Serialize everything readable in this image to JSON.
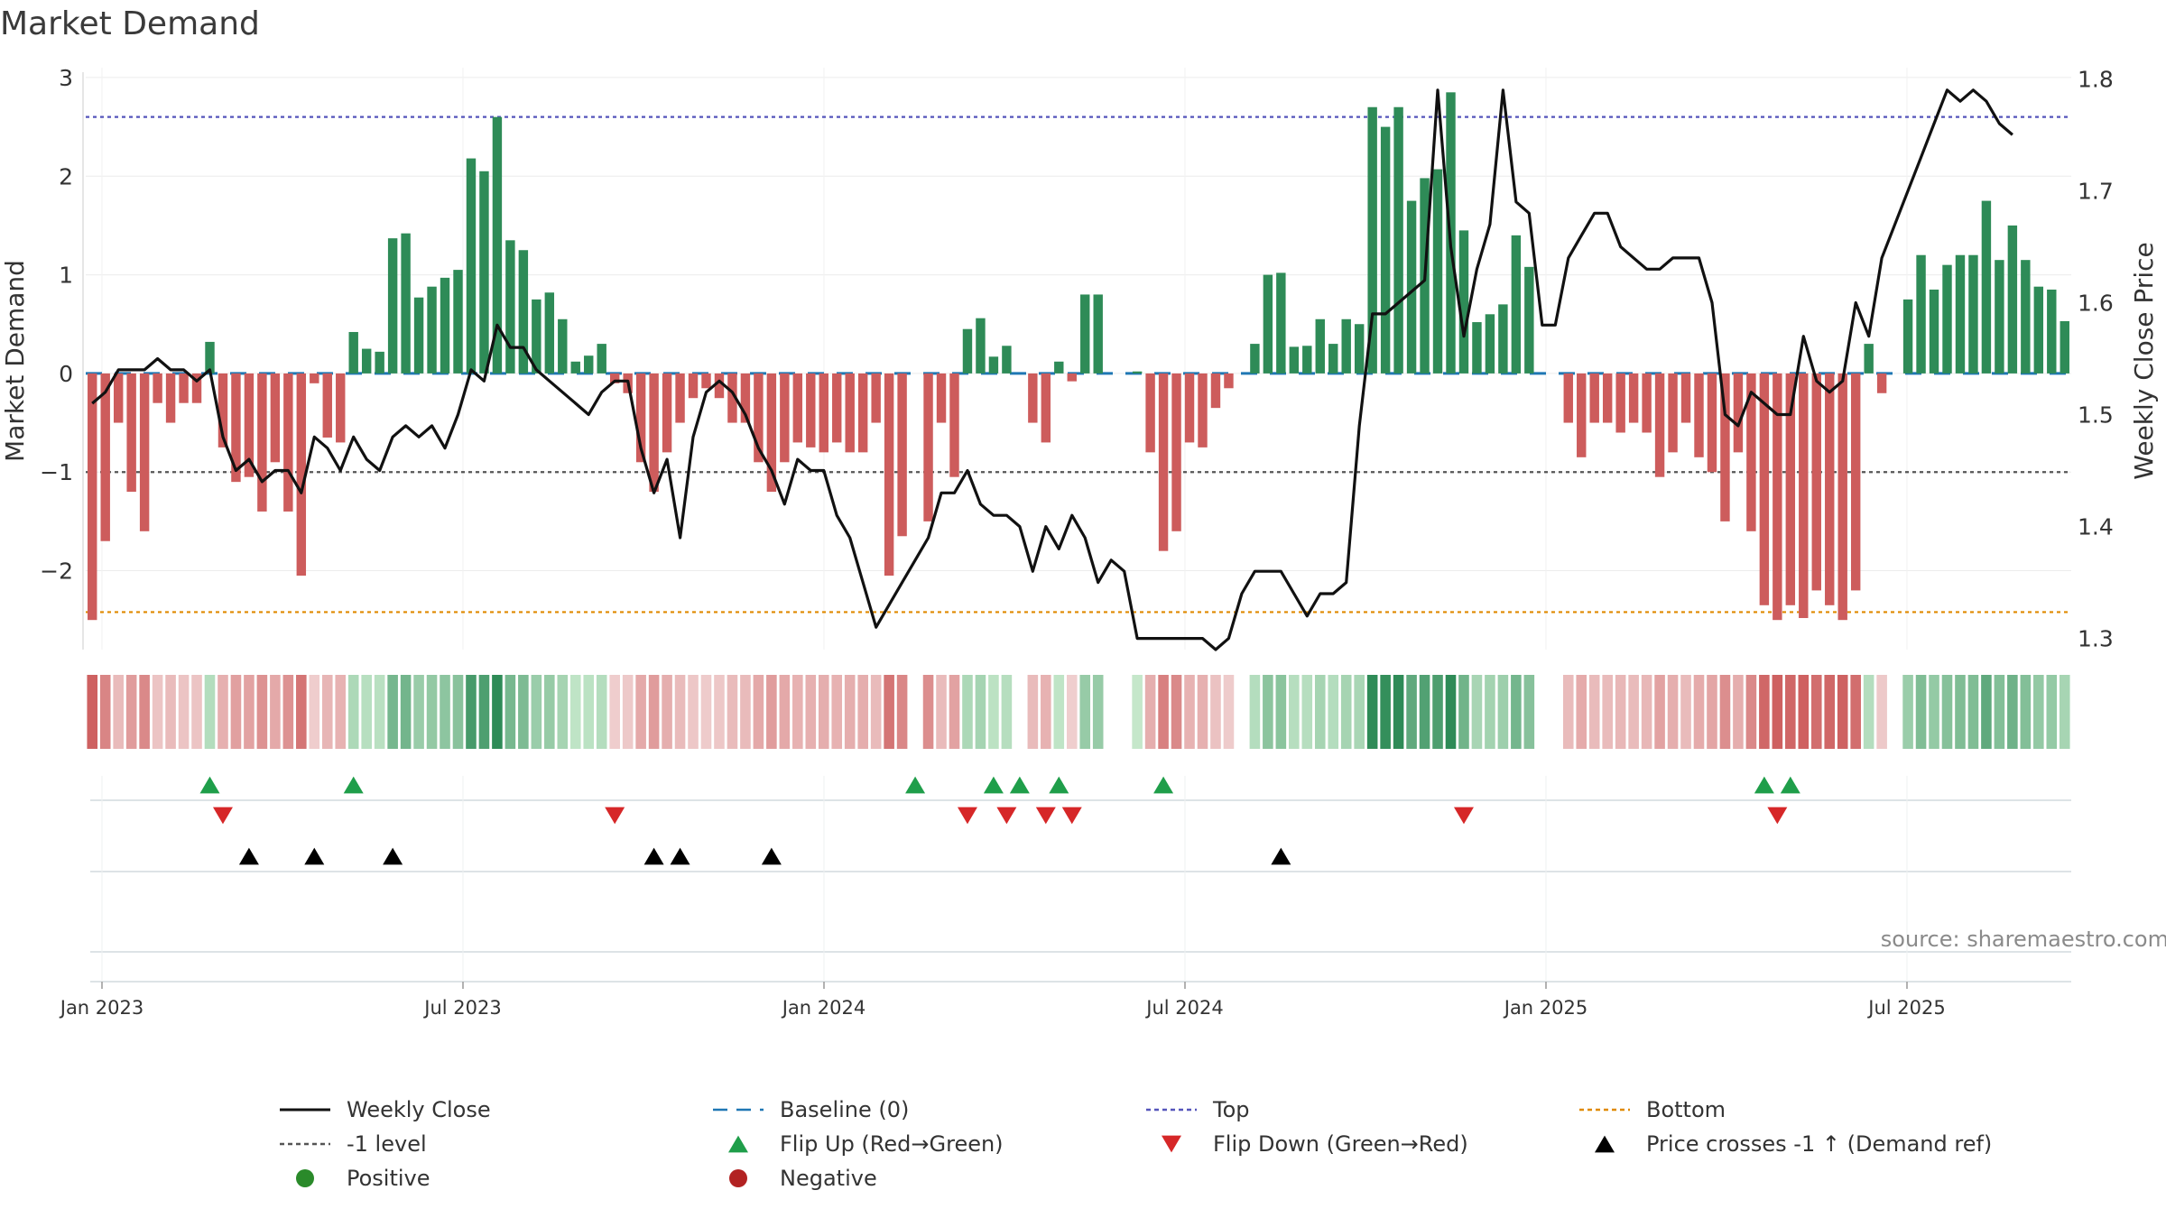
{
  "title": "Market Demand",
  "source": "source: sharemaestro.com",
  "colors": {
    "positive": "#2e8b57",
    "negative": "#cd5c5c",
    "close": "#111111",
    "top": "#5555bb",
    "bottom": "#e08a00",
    "minus1": "#555555",
    "baseline": "#1f77b4",
    "flip_up": "#1f9e4a",
    "flip_down": "#d62728",
    "cross": "#000000"
  },
  "chart_data": {
    "type": "bar",
    "ylabel": "Market Demand",
    "y2label": "Weekly Close Price",
    "ylim": [
      -2.8,
      3.1
    ],
    "y2lim": [
      1.29,
      1.81
    ],
    "yticks": [
      "3",
      "2",
      "1",
      "0",
      "−1",
      "−2"
    ],
    "y2ticks": [
      "1.8",
      "1.7",
      "1.6",
      "1.5",
      "1.4",
      "1.3"
    ],
    "xticks": [
      "Jan 2023",
      "Jul 2023",
      "Jan 2024",
      "Jul 2024",
      "Jan 2025",
      "Jul 2025"
    ],
    "reference_lines": {
      "top": 2.6,
      "bottom": -2.42,
      "minus_one": -1,
      "baseline": 0
    },
    "series": [
      {
        "name": "Market Demand",
        "type": "bar",
        "values": [
          -2.5,
          -1.7,
          -0.5,
          -1.2,
          -1.6,
          -0.3,
          -0.5,
          -0.3,
          -0.3,
          0.32,
          -0.75,
          -1.1,
          -1.05,
          -1.4,
          -0.9,
          -1.4,
          -2.05,
          -0.1,
          -0.65,
          -0.7,
          0.42,
          0.25,
          0.22,
          1.37,
          1.42,
          0.77,
          0.88,
          0.97,
          1.05,
          2.18,
          2.05,
          2.6,
          1.35,
          1.25,
          0.75,
          0.82,
          0.55,
          0.12,
          0.18,
          0.3,
          -0.1,
          -0.2,
          -0.9,
          -1.2,
          -0.8,
          -0.5,
          -0.25,
          -0.15,
          -0.25,
          -0.5,
          -0.5,
          -0.9,
          -1.2,
          -0.9,
          -0.7,
          -0.75,
          -0.8,
          -0.7,
          -0.8,
          -0.8,
          -0.5,
          -2.05,
          -1.65,
          0,
          -1.5,
          -0.5,
          -1.05,
          0.45,
          0.56,
          0.17,
          0.28,
          0,
          -0.5,
          -0.7,
          0.12,
          -0.08,
          0.8,
          0.8,
          0,
          0,
          0.02,
          -0.8,
          -1.8,
          -1.6,
          -0.7,
          -0.75,
          -0.35,
          -0.15,
          0,
          0.3,
          1.0,
          1.02,
          0.27,
          0.28,
          0.55,
          0.3,
          0.55,
          0.5,
          2.7,
          2.5,
          2.7,
          1.75,
          1.98,
          2.07,
          2.85,
          1.45,
          0.52,
          0.6,
          0.7,
          1.4,
          1.08,
          0,
          0,
          -0.5,
          -0.85,
          -0.5,
          -0.5,
          -0.6,
          -0.5,
          -0.6,
          -1.05,
          -0.8,
          -0.5,
          -0.85,
          -1,
          -1.5,
          -0.8,
          -1.6,
          -2.35,
          -2.5,
          -2.35,
          -2.48,
          -2.2,
          -2.35,
          -2.5,
          -2.2,
          0.3,
          -0.2,
          0,
          0.75,
          1.2,
          0.85,
          1.1,
          1.2,
          1.2,
          1.75,
          1.15,
          1.5,
          1.15,
          0.88,
          0.85,
          0.53
        ]
      },
      {
        "name": "Weekly Close",
        "type": "line",
        "values": [
          1.51,
          1.52,
          1.54,
          1.54,
          1.54,
          1.55,
          1.54,
          1.54,
          1.53,
          1.54,
          1.48,
          1.45,
          1.46,
          1.44,
          1.45,
          1.45,
          1.43,
          1.48,
          1.47,
          1.45,
          1.48,
          1.46,
          1.45,
          1.48,
          1.49,
          1.48,
          1.49,
          1.47,
          1.5,
          1.54,
          1.53,
          1.58,
          1.56,
          1.56,
          1.54,
          1.53,
          1.52,
          1.51,
          1.5,
          1.52,
          1.53,
          1.53,
          1.47,
          1.43,
          1.46,
          1.39,
          1.48,
          1.52,
          1.53,
          1.52,
          1.5,
          1.47,
          1.45,
          1.42,
          1.46,
          1.45,
          1.45,
          1.41,
          1.39,
          1.35,
          1.31,
          1.33,
          1.35,
          1.37,
          1.39,
          1.43,
          1.43,
          1.45,
          1.42,
          1.41,
          1.41,
          1.4,
          1.36,
          1.4,
          1.38,
          1.41,
          1.39,
          1.35,
          1.37,
          1.36,
          1.3,
          1.3,
          1.3,
          1.3,
          1.3,
          1.3,
          1.29,
          1.3,
          1.34,
          1.36,
          1.36,
          1.36,
          1.34,
          1.32,
          1.34,
          1.34,
          1.35,
          1.49,
          1.59,
          1.59,
          1.6,
          1.61,
          1.62,
          1.79,
          1.65,
          1.57,
          1.63,
          1.67,
          1.79,
          1.69,
          1.68,
          1.58,
          1.58,
          1.64,
          1.66,
          1.68,
          1.68,
          1.65,
          1.64,
          1.63,
          1.63,
          1.64,
          1.64,
          1.64,
          1.6,
          1.5,
          1.49,
          1.52,
          1.51,
          1.5,
          1.5,
          1.57,
          1.53,
          1.52,
          1.53,
          1.6,
          1.57,
          1.64,
          1.67,
          1.7,
          1.73,
          1.76,
          1.79,
          1.78,
          1.79,
          1.78,
          1.76,
          1.75
        ]
      }
    ],
    "heat_strip": {
      "desc": "one cell per week, color by demand value",
      "source_series": "Market Demand"
    },
    "markers": {
      "flip_up": [
        9,
        20,
        63,
        69,
        71,
        74,
        82,
        128,
        130
      ],
      "flip_down": [
        10,
        40,
        67,
        70,
        73,
        75,
        105,
        129
      ],
      "price_crosses": [
        12,
        17,
        23,
        43,
        45,
        52,
        91
      ]
    }
  },
  "legend": [
    {
      "label": "Weekly Close",
      "symbol": "line-solid",
      "color": "#111111"
    },
    {
      "label": "Baseline (0)",
      "symbol": "line-dashed",
      "color": "#1f77b4"
    },
    {
      "label": "Top",
      "symbol": "line-dotted",
      "color": "#5555bb"
    },
    {
      "label": "Bottom",
      "symbol": "line-dotted",
      "color": "#e08a00"
    },
    {
      "label": "-1 level",
      "symbol": "line-dotted",
      "color": "#555555"
    },
    {
      "label": "Flip Up (Red→Green)",
      "symbol": "triangle-up",
      "color": "#1f9e4a"
    },
    {
      "label": "Flip Down (Green→Red)",
      "symbol": "triangle-down",
      "color": "#d62728"
    },
    {
      "label": "Price crosses -1 ↑ (Demand ref)",
      "symbol": "triangle-up",
      "color": "#000000"
    },
    {
      "label": "Positive",
      "symbol": "circle",
      "color": "#2a8a2a"
    },
    {
      "label": "Negative",
      "symbol": "circle",
      "color": "#b22222"
    }
  ]
}
